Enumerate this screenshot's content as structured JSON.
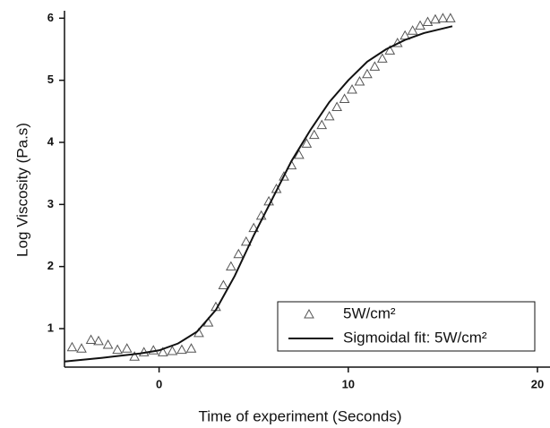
{
  "chart_data": {
    "type": "scatter",
    "xlabel": "Time of experiment (Seconds)",
    "ylabel": "Log Viscosity (Pa.s)",
    "xlim": [
      -5,
      20
    ],
    "ylim": [
      0.38,
      6.12
    ],
    "xticks": [
      0,
      10,
      20
    ],
    "yticks": [
      1,
      2,
      3,
      4,
      5,
      6
    ],
    "series": [
      {
        "name": "5W/cm²",
        "type": "scatter",
        "color": "#555555",
        "x": [
          -4.6,
          -4.1,
          -3.6,
          -3.2,
          -2.7,
          -2.2,
          -1.7,
          -1.3,
          -0.8,
          -0.3,
          0.2,
          0.7,
          1.2,
          1.7,
          2.1,
          2.6,
          3.0,
          3.4,
          3.8,
          4.2,
          4.6,
          5.0,
          5.4,
          5.8,
          6.2,
          6.6,
          7.0,
          7.4,
          7.8,
          8.2,
          8.6,
          9.0,
          9.4,
          9.8,
          10.2,
          10.6,
          11.0,
          11.4,
          11.8,
          12.2,
          12.6,
          13.0,
          13.4,
          13.8,
          14.2,
          14.6,
          15.0,
          15.4
        ],
        "values": [
          0.7,
          0.68,
          0.82,
          0.8,
          0.74,
          0.66,
          0.68,
          0.55,
          0.62,
          0.65,
          0.62,
          0.64,
          0.66,
          0.68,
          0.93,
          1.1,
          1.35,
          1.7,
          2.0,
          2.2,
          2.4,
          2.62,
          2.82,
          3.05,
          3.25,
          3.45,
          3.63,
          3.8,
          3.98,
          4.12,
          4.28,
          4.42,
          4.57,
          4.7,
          4.85,
          4.98,
          5.1,
          5.22,
          5.35,
          5.48,
          5.6,
          5.72,
          5.8,
          5.88,
          5.94,
          5.98,
          6.0,
          6.0
        ]
      },
      {
        "name": "Sigmoidal fit: 5W/cm²",
        "type": "line",
        "color": "#111111",
        "x": [
          -5,
          -3,
          -1,
          0,
          1,
          2,
          3,
          4,
          5,
          6,
          7,
          8,
          9,
          10,
          11,
          12,
          13,
          14,
          15.5
        ],
        "values": [
          0.47,
          0.53,
          0.6,
          0.65,
          0.76,
          0.95,
          1.3,
          1.85,
          2.5,
          3.1,
          3.7,
          4.2,
          4.65,
          5.0,
          5.3,
          5.5,
          5.65,
          5.76,
          5.87
        ]
      }
    ]
  }
}
